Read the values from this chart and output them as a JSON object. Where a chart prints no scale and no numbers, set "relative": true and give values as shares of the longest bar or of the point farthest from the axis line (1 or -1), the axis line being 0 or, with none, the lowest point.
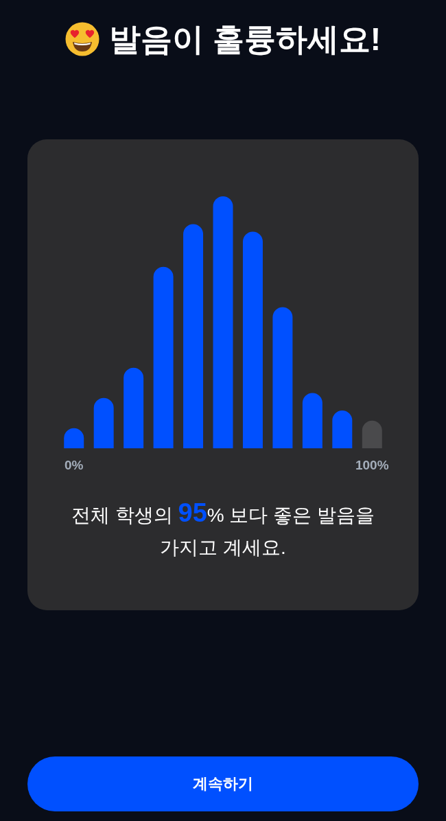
{
  "chart_data": {
    "type": "bar",
    "title": "발음이 훌륭하세요!",
    "categories": [
      "0%",
      null,
      null,
      null,
      null,
      null,
      null,
      null,
      null,
      null,
      "100%"
    ],
    "values": [
      0.08,
      0.2,
      0.32,
      0.72,
      0.89,
      1,
      0.86,
      0.56,
      0.22,
      0.15,
      0.11
    ],
    "colors": [
      "#0050ff",
      "#0050ff",
      "#0050ff",
      "#0050ff",
      "#0050ff",
      "#0050ff",
      "#0050ff",
      "#0050ff",
      "#0050ff",
      "#0050ff",
      "#4a4a4c"
    ],
    "relative": true,
    "annotations": [
      "전체 학생의 95% 보다 좋은 발음을 가지고 계세요.",
      "계속하기"
    ]
  }
}
